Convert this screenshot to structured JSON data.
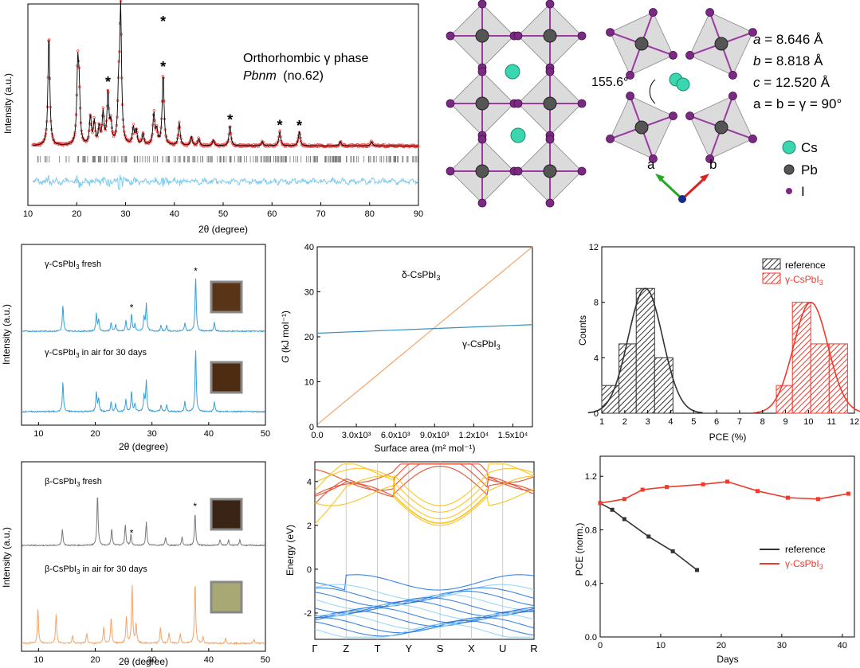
{
  "colors": {
    "obs": "#ef4444",
    "calc": "#000000",
    "diff": "#7ecbef",
    "ticks": "#777777",
    "blue": "#3a9fd6",
    "gray": "#7a7a7a",
    "orange": "#f5a468",
    "delta_line": "#f5a468",
    "gamma_line": "#3a8fbf",
    "ref": "#333333",
    "gamma": "#ef3a2d",
    "cond_top": "#f7c520",
    "cond_side": "#e64a2c",
    "val_top": "#1a6fe0",
    "val_mid": "#8ad0f5",
    "pb": "#555555",
    "i": "#7a2a82",
    "cs": "#3ad6b0",
    "oct": "#bdbdbd"
  },
  "panel_a": {
    "title": "Orthorhombic γ phase",
    "space_group": "Pbnm",
    "space_group_number": "(no.62)",
    "xlabel": "2θ (degree)",
    "ylabel": "Intensity (a.u.)",
    "xticks": [
      "10",
      "20",
      "30",
      "40",
      "50",
      "60",
      "70",
      "80",
      "90"
    ]
  },
  "panel_b": {
    "angle_label": "155.6°",
    "lattice": [
      "a = 8.646 Å",
      "b = 8.818 Å",
      "c = 12.520 Å",
      "a = b = γ = 90°"
    ],
    "legend": [
      "Cs",
      "Pb",
      "I"
    ],
    "axis_a": "a",
    "axis_b": "b"
  },
  "panel_c": {
    "label_fresh": "γ-CsPbI3 fresh",
    "label_aged": "γ-CsPbI3 in air for 30 days",
    "xlabel": "2θ (degree)",
    "ylabel": "Intensity (a.u.)",
    "xticks": [
      "10",
      "20",
      "30",
      "40",
      "50"
    ]
  },
  "panel_d": {
    "label_fresh": "β-CsPbI3 fresh",
    "label_aged": "β-CsPbI3 in air for 30 days",
    "xlabel": "2θ (degree)",
    "ylabel": "Intensity (a.u.)",
    "xticks": [
      "10",
      "20",
      "30",
      "40",
      "50"
    ]
  },
  "panel_e": {
    "xlabel": "Surface area (m² mol⁻¹)",
    "ylabel": "G (kJ mol⁻¹)",
    "label_delta": "δ-CsPbI3",
    "label_gamma": "γ-CsPbI3",
    "xticks": [
      "0.0",
      "3.0x10³",
      "6.0x10³",
      "9.0x10³",
      "1.2x10⁴",
      "1.5x10⁴"
    ],
    "yticks": [
      "0",
      "10",
      "20",
      "30",
      "40"
    ]
  },
  "panel_f": {
    "ylabel": "Energy (eV)",
    "kpoints": [
      "Γ",
      "Z",
      "T",
      "Y",
      "S",
      "X",
      "U",
      "R"
    ],
    "yticks": [
      "-2",
      "0",
      "2",
      "4"
    ]
  },
  "panel_g": {
    "xlabel": "PCE (%)",
    "ylabel": "Counts",
    "legend": [
      "reference",
      "γ-CsPbI3"
    ],
    "xticks": [
      "1",
      "2",
      "3",
      "4",
      "5",
      "6",
      "7",
      "8",
      "9",
      "10",
      "11",
      "12"
    ],
    "yticks": [
      "0",
      "4",
      "8",
      "12"
    ]
  },
  "panel_h": {
    "xlabel": "Days",
    "ylabel": "PCE (norm.)",
    "legend": [
      "reference",
      "γ-CsPbI3"
    ],
    "xticks": [
      "0",
      "10",
      "20",
      "30",
      "40"
    ],
    "yticks": [
      "0.0",
      "0.4",
      "0.8",
      "1.2"
    ]
  },
  "chart_data": [
    {
      "type": "line",
      "title": "Orthorhombic γ phase Pbnm (no.62)",
      "xlabel": "2θ (degree)",
      "ylabel": "Intensity (a.u.)",
      "xlim": [
        10,
        90
      ],
      "peaks": [
        [
          14.3,
          0.78
        ],
        [
          20.2,
          0.52
        ],
        [
          20.5,
          0.34
        ],
        [
          22.8,
          0.2
        ],
        [
          23.6,
          0.16
        ],
        [
          24.6,
          0.12
        ],
        [
          25.4,
          0.22
        ],
        [
          26.4,
          0.36
        ],
        [
          27.0,
          0.14
        ],
        [
          28.6,
          0.34
        ],
        [
          29.0,
          0.92
        ],
        [
          31.6,
          0.12
        ],
        [
          32.2,
          0.1
        ],
        [
          33.6,
          0.08
        ],
        [
          35.8,
          0.22
        ],
        [
          36.4,
          0.1
        ],
        [
          37.7,
          0.5
        ],
        [
          41.0,
          0.16
        ],
        [
          43.5,
          0.06
        ],
        [
          45.0,
          0.05
        ],
        [
          48.0,
          0.04
        ],
        [
          51.4,
          0.14
        ],
        [
          58.0,
          0.03
        ],
        [
          61.6,
          0.1
        ],
        [
          65.6,
          0.1
        ],
        [
          74.0,
          0.03
        ],
        [
          80.4,
          0.03
        ]
      ],
      "starred_peaks": [
        26.4,
        37.7,
        51.4,
        61.6,
        65.6
      ]
    },
    {
      "type": "line",
      "xlabel": "2θ (degree)",
      "ylabel": "Intensity (a.u.)",
      "xlim": [
        7,
        50
      ],
      "series": [
        {
          "name": "γ-CsPbI3 fresh",
          "peaks": [
            [
              14.3,
              0.45
            ],
            [
              20.2,
              0.3
            ],
            [
              20.6,
              0.2
            ],
            [
              22.8,
              0.15
            ],
            [
              23.6,
              0.12
            ],
            [
              25.4,
              0.18
            ],
            [
              26.4,
              0.3
            ],
            [
              27.0,
              0.12
            ],
            [
              28.6,
              0.25
            ],
            [
              29.0,
              0.48
            ],
            [
              31.6,
              0.1
            ],
            [
              32.6,
              0.1
            ],
            [
              35.8,
              0.15
            ],
            [
              37.7,
              0.95
            ],
            [
              41.0,
              0.15
            ]
          ]
        },
        {
          "name": "γ-CsPbI3 in air for 30 days",
          "peaks": [
            [
              14.3,
              0.45
            ],
            [
              20.2,
              0.3
            ],
            [
              20.6,
              0.2
            ],
            [
              22.8,
              0.15
            ],
            [
              23.6,
              0.12
            ],
            [
              25.4,
              0.18
            ],
            [
              26.4,
              0.32
            ],
            [
              27.0,
              0.12
            ],
            [
              28.6,
              0.25
            ],
            [
              29.0,
              0.48
            ],
            [
              31.6,
              0.1
            ],
            [
              32.6,
              0.1
            ],
            [
              35.8,
              0.15
            ],
            [
              37.7,
              0.97
            ],
            [
              41.0,
              0.15
            ]
          ]
        }
      ],
      "starred_peaks": [
        26.4,
        37.7
      ]
    },
    {
      "type": "line",
      "xlabel": "2θ (degree)",
      "ylabel": "Intensity (a.u.)",
      "xlim": [
        7,
        50
      ],
      "series": [
        {
          "name": "β-CsPbI3 fresh",
          "peaks": [
            [
              14.2,
              0.3
            ],
            [
              20.4,
              0.95
            ],
            [
              22.9,
              0.3
            ],
            [
              25.3,
              0.38
            ],
            [
              26.3,
              0.2
            ],
            [
              29.0,
              0.42
            ],
            [
              32.4,
              0.15
            ],
            [
              35.3,
              0.15
            ],
            [
              37.6,
              0.6
            ],
            [
              42.0,
              0.1
            ],
            [
              43.5,
              0.1
            ],
            [
              45.5,
              0.1
            ]
          ]
        },
        {
          "name": "β-CsPbI3 in air for 30 days",
          "peaks": [
            [
              9.9,
              0.52
            ],
            [
              13.1,
              0.45
            ],
            [
              16.0,
              0.12
            ],
            [
              18.5,
              0.15
            ],
            [
              21.5,
              0.25
            ],
            [
              22.8,
              0.4
            ],
            [
              25.5,
              0.4
            ],
            [
              26.5,
              0.9
            ],
            [
              27.2,
              0.3
            ],
            [
              31.5,
              0.25
            ],
            [
              33.0,
              0.15
            ],
            [
              35.0,
              0.15
            ],
            [
              37.6,
              0.95
            ],
            [
              39.0,
              0.1
            ],
            [
              43.0,
              0.08
            ],
            [
              48.0,
              0.06
            ]
          ]
        }
      ],
      "starred_peaks": [
        26.4,
        37.6
      ]
    },
    {
      "type": "line",
      "xlabel": "Surface area (m² mol⁻¹)",
      "ylabel": "G (kJ mol⁻¹)",
      "xlim": [
        0,
        16500
      ],
      "ylim": [
        0,
        40
      ],
      "series": [
        {
          "name": "δ-CsPbI3",
          "x": [
            0,
            16500
          ],
          "values": [
            0.5,
            40.5
          ]
        },
        {
          "name": "γ-CsPbI3",
          "x": [
            0,
            16500
          ],
          "values": [
            20.8,
            22.7
          ]
        }
      ]
    },
    {
      "type": "line",
      "xlabel": "",
      "ylabel": "Energy (eV)",
      "categories": [
        "Γ",
        "Z",
        "T",
        "Y",
        "S",
        "X",
        "U",
        "R"
      ],
      "ylim": [
        -3.2,
        4.9
      ],
      "description": "band structure: conduction bands above 1.7 eV, valence bands below 0"
    },
    {
      "type": "bar",
      "xlabel": "PCE (%)",
      "ylabel": "Counts",
      "xlim": [
        1,
        12
      ],
      "ylim": [
        0,
        12
      ],
      "series": [
        {
          "name": "reference",
          "bins": [
            [
              1,
              1.75
            ],
            [
              1.75,
              2.5
            ],
            [
              2.5,
              3.3
            ],
            [
              3.3,
              4.1
            ]
          ],
          "values": [
            2,
            5,
            9,
            4
          ],
          "fit_center": 2.9
        },
        {
          "name": "γ-CsPbI3",
          "bins": [
            [
              8.6,
              9.3
            ],
            [
              9.3,
              10.1
            ],
            [
              10.1,
              10.9
            ],
            [
              10.9,
              11.7
            ]
          ],
          "values": [
            2,
            8,
            5,
            5
          ],
          "fit_center": 10.1
        }
      ]
    },
    {
      "type": "line",
      "xlabel": "Days",
      "ylabel": "PCE (norm.)",
      "xlim": [
        0,
        42
      ],
      "ylim": [
        0,
        1.35
      ],
      "series": [
        {
          "name": "reference",
          "x": [
            0,
            2,
            4,
            8,
            12,
            16
          ],
          "values": [
            1.0,
            0.95,
            0.88,
            0.75,
            0.64,
            0.5
          ]
        },
        {
          "name": "γ-CsPbI3",
          "x": [
            0,
            4,
            7,
            11,
            17,
            21,
            26,
            31,
            36,
            41
          ],
          "values": [
            1.0,
            1.03,
            1.1,
            1.12,
            1.14,
            1.16,
            1.09,
            1.04,
            1.03,
            1.07
          ]
        }
      ]
    }
  ]
}
